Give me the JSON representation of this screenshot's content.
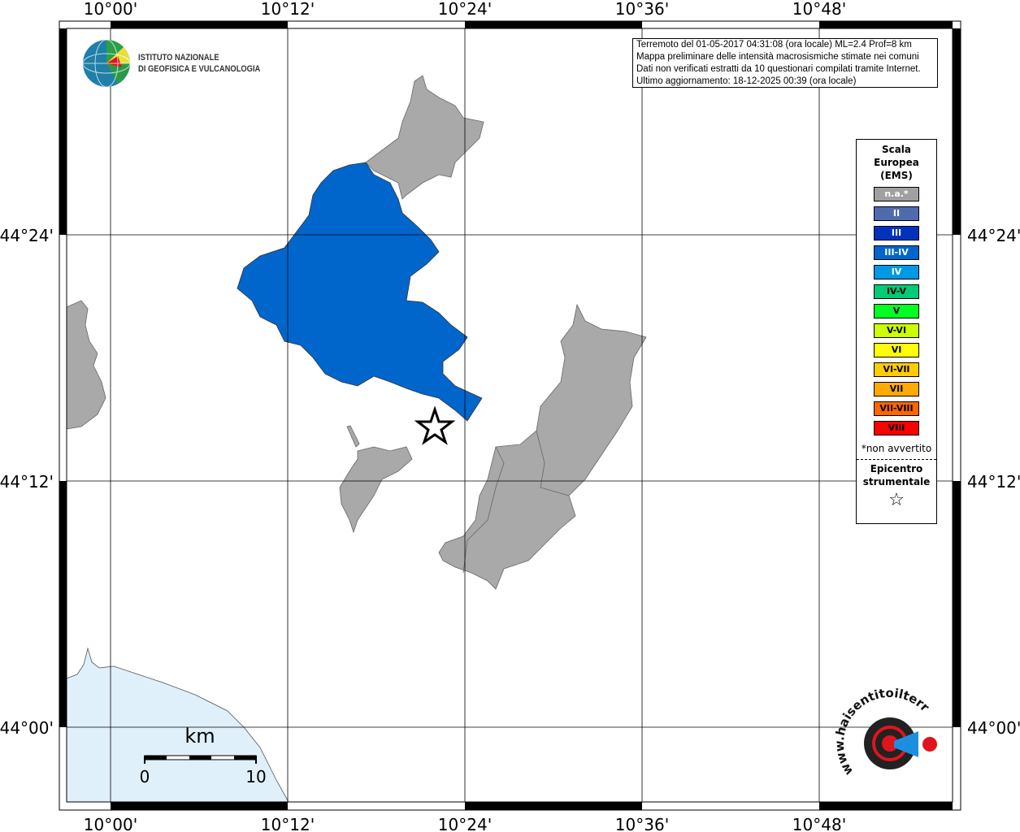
{
  "map": {
    "lon_labels": [
      "10°00'",
      "10°12'",
      "10°24'",
      "10°36'",
      "10°48'"
    ],
    "lat_labels": [
      "44°24'",
      "44°12'",
      "44°00'"
    ],
    "colors": {
      "land_na": "#a9a9a9",
      "intensity_III_IV": "#0066cc",
      "sea": "#dff0fb"
    },
    "scale_bar": {
      "unit": "km",
      "min_label": "0",
      "max_label": "10"
    },
    "epicenter_icon": "star-icon"
  },
  "info_box": {
    "lines": [
      "Terremoto del 01-05-2017 04:31:08 (ora locale) ML=2.4 Prof=8 km",
      "Mappa preliminare delle intensità macrosismiche stimate nei comuni",
      "Dati non verificati estratti da 10 questionari compilati tramite Internet.",
      "Ultimo aggiornamento: 18-12-2025 00:39 (ora locale)"
    ]
  },
  "logos": {
    "ingv_line1": "ISTITUTO NAZIONALE",
    "ingv_line2": "DI GEOFISICA E VULCANOLOGIA",
    "hsit": "www.haisentitoilterremoto.it"
  },
  "legend": {
    "title_lines": [
      "Scala",
      "Europea",
      "(EMS)"
    ],
    "classes": [
      {
        "label": "n.a.*",
        "color": "#a0a0a0",
        "text": "#ffffff"
      },
      {
        "label": "II",
        "color": "#4f6bb0",
        "text": "#ffffff"
      },
      {
        "label": "III",
        "color": "#0033bb",
        "text": "#ffffff"
      },
      {
        "label": "III-IV",
        "color": "#0066cc",
        "text": "#ffffff"
      },
      {
        "label": "IV",
        "color": "#0099e6",
        "text": "#ffffff"
      },
      {
        "label": "IV-V",
        "color": "#00cc77",
        "text": "#000000"
      },
      {
        "label": "V",
        "color": "#00ff22",
        "text": "#000000"
      },
      {
        "label": "V-VI",
        "color": "#ccff00",
        "text": "#000000"
      },
      {
        "label": "VI",
        "color": "#ffff00",
        "text": "#000000"
      },
      {
        "label": "VI-VII",
        "color": "#ffcc00",
        "text": "#000000"
      },
      {
        "label": "VII",
        "color": "#ffaa00",
        "text": "#000000"
      },
      {
        "label": "VII-VIII",
        "color": "#ff6600",
        "text": "#000000"
      },
      {
        "label": "VIII",
        "color": "#ff0000",
        "text": "#000000"
      }
    ],
    "note": "*non avvertito",
    "epicenter_lines": [
      "Epicentro",
      "strumentale"
    ],
    "epicenter_symbol": "☆"
  }
}
